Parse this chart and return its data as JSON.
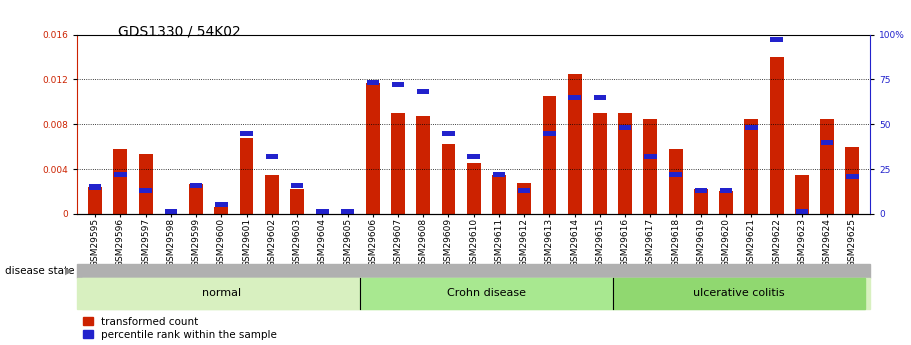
{
  "title": "GDS1330 / 54K02",
  "samples": [
    "GSM29595",
    "GSM29596",
    "GSM29597",
    "GSM29598",
    "GSM29599",
    "GSM29600",
    "GSM29601",
    "GSM29602",
    "GSM29603",
    "GSM29604",
    "GSM29605",
    "GSM29606",
    "GSM29607",
    "GSM29608",
    "GSM29609",
    "GSM29610",
    "GSM29611",
    "GSM29612",
    "GSM29613",
    "GSM29614",
    "GSM29615",
    "GSM29616",
    "GSM29617",
    "GSM29618",
    "GSM29619",
    "GSM29620",
    "GSM29621",
    "GSM29622",
    "GSM29623",
    "GSM29624",
    "GSM29625"
  ],
  "transformed_count": [
    0.0024,
    0.0058,
    0.0053,
    0.0,
    0.0027,
    0.0006,
    0.0068,
    0.0035,
    0.0022,
    0.0,
    0.0,
    0.0117,
    0.009,
    0.0087,
    0.0062,
    0.0045,
    0.0035,
    0.0028,
    0.0105,
    0.0125,
    0.009,
    0.009,
    0.0085,
    0.0058,
    0.0022,
    0.002,
    0.0085,
    0.014,
    0.0035,
    0.0085,
    0.006
  ],
  "percentile_rank_pct": [
    15,
    22,
    13,
    0,
    16,
    5,
    45,
    32,
    16,
    0,
    0,
    73,
    72,
    68,
    45,
    32,
    22,
    13,
    45,
    65,
    65,
    48,
    32,
    22,
    13,
    13,
    48,
    97,
    0,
    40,
    21
  ],
  "groups": [
    {
      "label": "normal",
      "start": 0,
      "end": 10,
      "color": "#d8f0c0"
    },
    {
      "label": "Crohn disease",
      "start": 11,
      "end": 20,
      "color": "#a8e890"
    },
    {
      "label": "ulcerative colitis",
      "start": 21,
      "end": 30,
      "color": "#90d870"
    }
  ],
  "ylim_left": [
    0,
    0.016
  ],
  "ylim_right": [
    0,
    100
  ],
  "yticks_left": [
    0,
    0.004,
    0.008,
    0.012,
    0.016
  ],
  "yticks_right": [
    0,
    25,
    50,
    75,
    100
  ],
  "bar_color_red": "#cc2200",
  "bar_color_blue": "#2222cc",
  "background_color": "#ffffff",
  "disease_state_label": "disease state",
  "legend_items": [
    "transformed count",
    "percentile rank within the sample"
  ],
  "bar_width": 0.55,
  "title_fontsize": 10,
  "tick_fontsize": 6.5,
  "gray_band_color": "#b0b0b0"
}
